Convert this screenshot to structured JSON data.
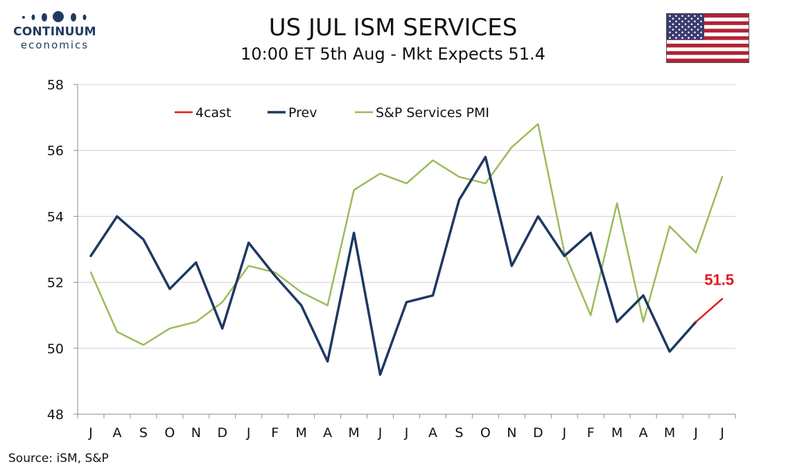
{
  "header": {
    "logo_name": "CONTINUUM",
    "logo_sub": "economics",
    "title": "US JUL ISM SERVICES",
    "subtitle": "10:00 ET 5th Aug - Mkt Expects 51.4"
  },
  "footer": {
    "source": "Source: iSM, S&P"
  },
  "colors": {
    "brand": "#1f3a5f",
    "prev": "#1f3864",
    "forecast": "#e31a1c",
    "pmi": "#9bbb59",
    "grid": "#d0d0d0",
    "axis": "#888888",
    "flag_red": "#b22234",
    "flag_blue": "#3c3b6e"
  },
  "icons": {
    "flag": "us-flag-icon",
    "logo": "continuum-logo-icon"
  },
  "chart_data": {
    "type": "line",
    "categories": [
      "J",
      "A",
      "S",
      "O",
      "N",
      "D",
      "J",
      "F",
      "M",
      "A",
      "M",
      "J",
      "J",
      "A",
      "S",
      "O",
      "N",
      "D",
      "J",
      "F",
      "M",
      "A",
      "M",
      "J",
      "J"
    ],
    "ylim": [
      48,
      58
    ],
    "yticks": [
      48,
      50,
      52,
      54,
      56,
      58
    ],
    "grid": true,
    "legend_position": "top-left",
    "series": [
      {
        "name": "4cast",
        "values": [
          null,
          null,
          null,
          null,
          null,
          null,
          null,
          null,
          null,
          null,
          null,
          null,
          null,
          null,
          null,
          null,
          null,
          null,
          null,
          null,
          null,
          null,
          null,
          50.8,
          51.5
        ]
      },
      {
        "name": "Prev",
        "values": [
          52.8,
          54.0,
          53.3,
          51.8,
          52.6,
          50.6,
          53.2,
          52.2,
          51.3,
          49.6,
          53.5,
          49.2,
          51.4,
          51.6,
          54.5,
          55.8,
          52.5,
          54.0,
          52.8,
          53.5,
          50.8,
          51.6,
          49.9,
          50.8,
          null
        ]
      },
      {
        "name": "S&P Services PMI",
        "values": [
          52.3,
          50.5,
          50.1,
          50.6,
          50.8,
          51.4,
          52.5,
          52.3,
          51.7,
          51.3,
          54.8,
          55.3,
          55.0,
          55.7,
          55.2,
          55.0,
          56.1,
          56.8,
          52.9,
          51.0,
          54.4,
          50.8,
          53.7,
          52.9,
          55.2
        ]
      }
    ],
    "annotations": [
      {
        "text": "51.5"
      }
    ]
  }
}
